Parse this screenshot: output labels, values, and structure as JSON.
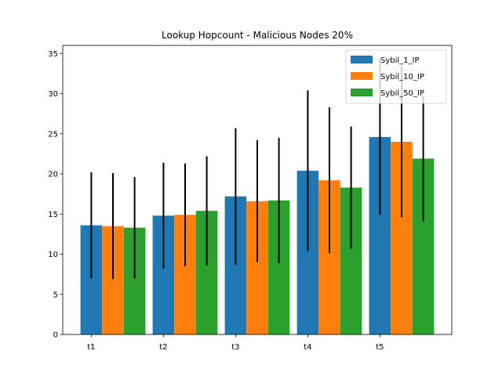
{
  "chart_data": {
    "type": "bar",
    "title": "Lookup Hopcount - Malicious Nodes 20%",
    "xlabel": "",
    "ylabel": "",
    "categories": [
      "t1",
      "t2",
      "t3",
      "t4",
      "t5"
    ],
    "ylim": [
      0,
      36
    ],
    "yticks": [
      0,
      5,
      10,
      15,
      20,
      25,
      30,
      35
    ],
    "grid": false,
    "legend_position": "top-right",
    "series": [
      {
        "name": "Sybil_1_IP",
        "color": "#1f77b4",
        "values": [
          13.6,
          14.8,
          17.2,
          20.4,
          24.6
        ],
        "error": [
          6.6,
          6.6,
          8.5,
          10.0,
          9.7
        ]
      },
      {
        "name": "Sybil_10_IP",
        "color": "#ff7f0e",
        "values": [
          13.5,
          14.9,
          16.6,
          19.2,
          24.0
        ],
        "error": [
          6.6,
          6.4,
          7.6,
          9.1,
          9.4
        ]
      },
      {
        "name": "Sybil_50_IP",
        "color": "#2ca02c",
        "values": [
          13.3,
          15.4,
          16.7,
          18.3,
          21.9
        ],
        "error": [
          6.3,
          6.8,
          7.8,
          7.6,
          7.8
        ]
      }
    ]
  }
}
